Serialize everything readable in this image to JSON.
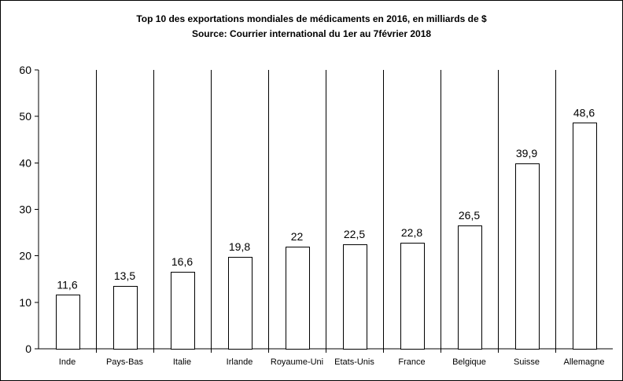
{
  "chart_data": {
    "type": "bar",
    "title": "Top 10 des exportations mondiales de médicaments en 2016, en milliards de $",
    "subtitle": "Source: Courrier international du 1er au 7février 2018",
    "categories": [
      "Inde",
      "Pays-Bas",
      "Italie",
      "Irlande",
      "Royaume-Uni",
      "Etats-Unis",
      "France",
      "Belgique",
      "Suisse",
      "Allemagne"
    ],
    "values": [
      11.6,
      13.5,
      16.6,
      19.8,
      22,
      22.5,
      22.8,
      26.5,
      39.9,
      48.6
    ],
    "data_labels": [
      "11,6",
      "13,5",
      "16,6",
      "19,8",
      "22",
      "22,5",
      "22,8",
      "26,5",
      "39,9",
      "48,6"
    ],
    "y_ticks": [
      "0",
      "10",
      "20",
      "30",
      "40",
      "50",
      "60"
    ],
    "ylim": [
      0,
      60
    ],
    "xlabel": "",
    "ylabel": "",
    "grid": false,
    "category_separators": true
  }
}
